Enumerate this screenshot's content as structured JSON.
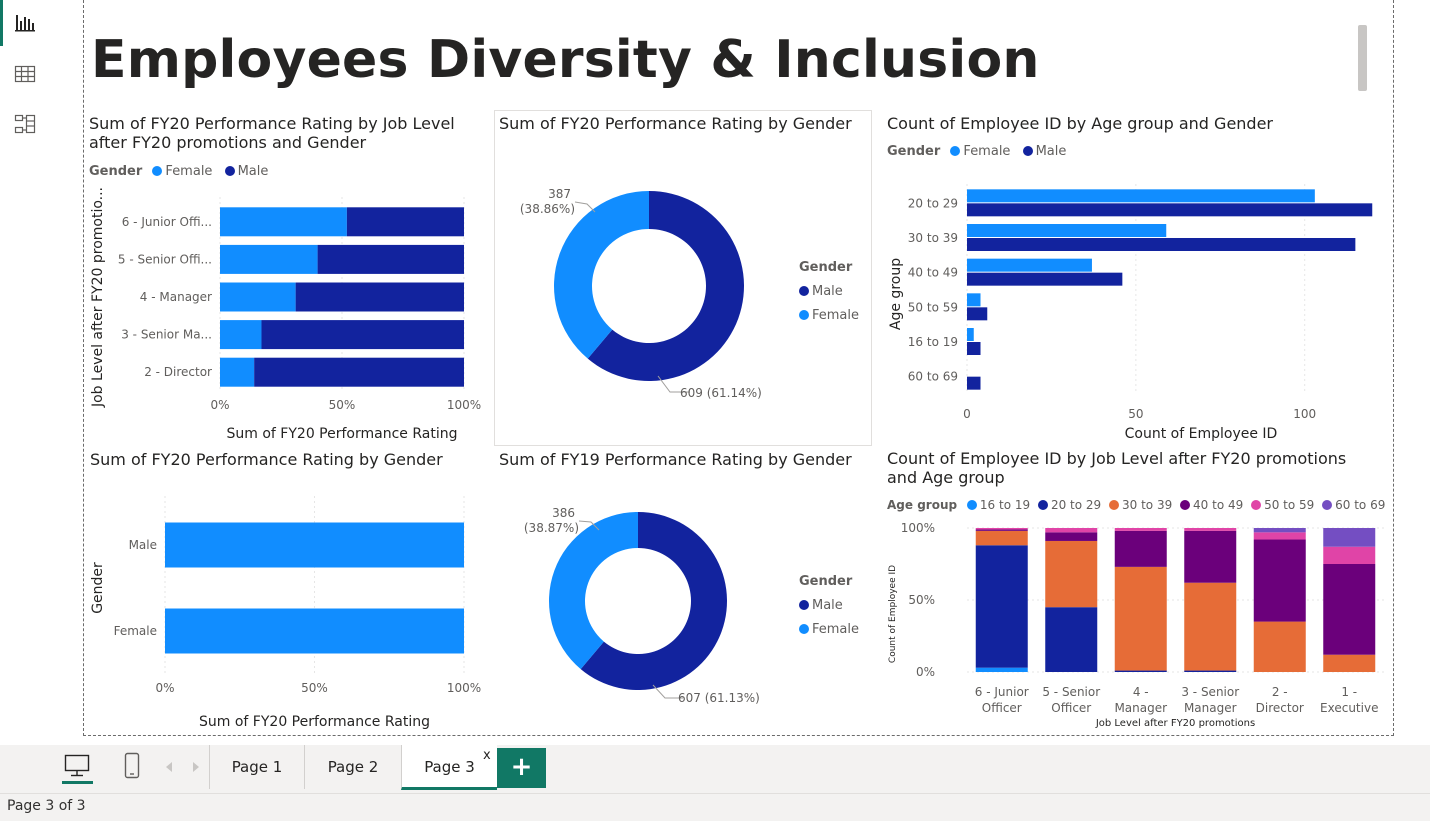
{
  "report": {
    "title": "Employees Diversity & Inclusion",
    "status": "Page 3 of 3"
  },
  "colors": {
    "female": "#118dff",
    "male": "#12239e",
    "accent": "#117865"
  },
  "pages": [
    {
      "label": "Page 1",
      "active": false
    },
    {
      "label": "Page 2",
      "active": false
    },
    {
      "label": "Page 3",
      "active": true
    }
  ],
  "tab_close_glyph": "x",
  "add_page_glyph": "+",
  "visuals": {
    "v1": {
      "title": "Sum of FY20 Performance Rating by Job Level after FY20 promotions and Gender",
      "legend_title": "Gender",
      "legend": [
        "Female",
        "Male"
      ]
    },
    "v2": {
      "title": "Sum of FY20 Performance Rating by Gender",
      "legend_title": "Gender",
      "legend": [
        "Male",
        "Female"
      ]
    },
    "v3": {
      "title": "Count of Employee ID by Age group and Gender",
      "legend_title": "Gender",
      "legend": [
        "Female",
        "Male"
      ]
    },
    "v4": {
      "title": "Sum of FY20 Performance Rating by Gender"
    },
    "v5": {
      "title": "Sum of FY19 Performance Rating by Gender",
      "legend_title": "Gender",
      "legend": [
        "Male",
        "Female"
      ]
    },
    "v6": {
      "title": "Count of Employee ID by Job Level after FY20 promotions and Age group",
      "legend_title": "Age group",
      "legend": [
        "16 to 19",
        "20 to 29",
        "30 to 39",
        "40 to 49",
        "50 to 59",
        "60 to 69"
      ]
    }
  },
  "chart_data": [
    {
      "id": "v1",
      "type": "bar",
      "orientation": "horizontal",
      "stacked": "100%",
      "categories": [
        "6 - Junior Offi...",
        "5 - Senior Offi...",
        "4 - Manager",
        "3 - Senior Ma...",
        "2 - Director"
      ],
      "series": [
        {
          "name": "Female",
          "color": "#118dff",
          "values": [
            52,
            40,
            31,
            17,
            14
          ]
        },
        {
          "name": "Male",
          "color": "#12239e",
          "values": [
            48,
            60,
            69,
            83,
            86
          ]
        }
      ],
      "xlabel": "Sum of FY20 Performance Rating",
      "ylabel": "Job Level after FY20 promotio...",
      "xticks": [
        "0%",
        "50%",
        "100%"
      ],
      "xlim": [
        0,
        100
      ]
    },
    {
      "id": "v2",
      "type": "pie",
      "donut": true,
      "slices": [
        {
          "name": "Male",
          "value": 609,
          "label": "609 (61.14%)",
          "color": "#12239e"
        },
        {
          "name": "Female",
          "value": 387,
          "label": "387 (38.86%)",
          "color": "#118dff"
        }
      ]
    },
    {
      "id": "v3",
      "type": "bar",
      "orientation": "horizontal",
      "grouped": true,
      "categories": [
        "20 to 29",
        "30 to 39",
        "40 to 49",
        "50 to 59",
        "16 to 19",
        "60 to 69"
      ],
      "series": [
        {
          "name": "Female",
          "color": "#118dff",
          "values": [
            103,
            59,
            37,
            4,
            2,
            0
          ]
        },
        {
          "name": "Male",
          "color": "#12239e",
          "values": [
            120,
            115,
            46,
            6,
            4,
            4
          ]
        }
      ],
      "xlabel": "Count of Employee ID",
      "ylabel": "Age group",
      "xticks": [
        "0",
        "50",
        "100"
      ],
      "xlim": [
        0,
        122
      ]
    },
    {
      "id": "v4",
      "type": "bar",
      "orientation": "horizontal",
      "stacked": "100%",
      "categories": [
        "Male",
        "Female"
      ],
      "series": [
        {
          "name": "Value",
          "color": "#118dff",
          "values": [
            100,
            100
          ]
        }
      ],
      "xlabel": "Sum of FY20 Performance Rating",
      "ylabel": "Gender",
      "xticks": [
        "0%",
        "50%",
        "100%"
      ],
      "xlim": [
        0,
        100
      ]
    },
    {
      "id": "v5",
      "type": "pie",
      "donut": true,
      "slices": [
        {
          "name": "Male",
          "value": 607,
          "label": "607 (61.13%)",
          "color": "#12239e"
        },
        {
          "name": "Female",
          "value": 386,
          "label": "386 (38.87%)",
          "color": "#118dff"
        }
      ]
    },
    {
      "id": "v6",
      "type": "bar",
      "orientation": "vertical",
      "stacked": "100%",
      "categories": [
        [
          "6 - Junior",
          "Officer"
        ],
        [
          "5 - Senior",
          "Officer"
        ],
        [
          "4 -",
          "Manager"
        ],
        [
          "3 - Senior",
          "Manager"
        ],
        [
          "2 -",
          "Director"
        ],
        [
          "1 -",
          "Executive"
        ]
      ],
      "series": [
        {
          "name": "16 to 19",
          "color": "#118dff",
          "values": [
            3,
            0,
            0,
            0,
            0,
            0
          ]
        },
        {
          "name": "20 to 29",
          "color": "#12239e",
          "values": [
            85,
            45,
            1,
            1,
            0,
            0
          ]
        },
        {
          "name": "30 to 39",
          "color": "#e66c37",
          "values": [
            10,
            46,
            72,
            61,
            35,
            12
          ]
        },
        {
          "name": "40 to 49",
          "color": "#6b007b",
          "values": [
            1,
            6,
            25,
            36,
            57,
            63
          ]
        },
        {
          "name": "50 to 59",
          "color": "#e044a7",
          "values": [
            1,
            3,
            2,
            2,
            5,
            12
          ]
        },
        {
          "name": "60 to 69",
          "color": "#744ec2",
          "values": [
            0,
            0,
            0,
            0,
            3,
            13
          ]
        }
      ],
      "xlabel": "Job Level after FY20 promotions",
      "ylabel": "Count of Employee ID",
      "yticks": [
        "0%",
        "50%",
        "100%"
      ],
      "ylim": [
        0,
        100
      ]
    }
  ]
}
